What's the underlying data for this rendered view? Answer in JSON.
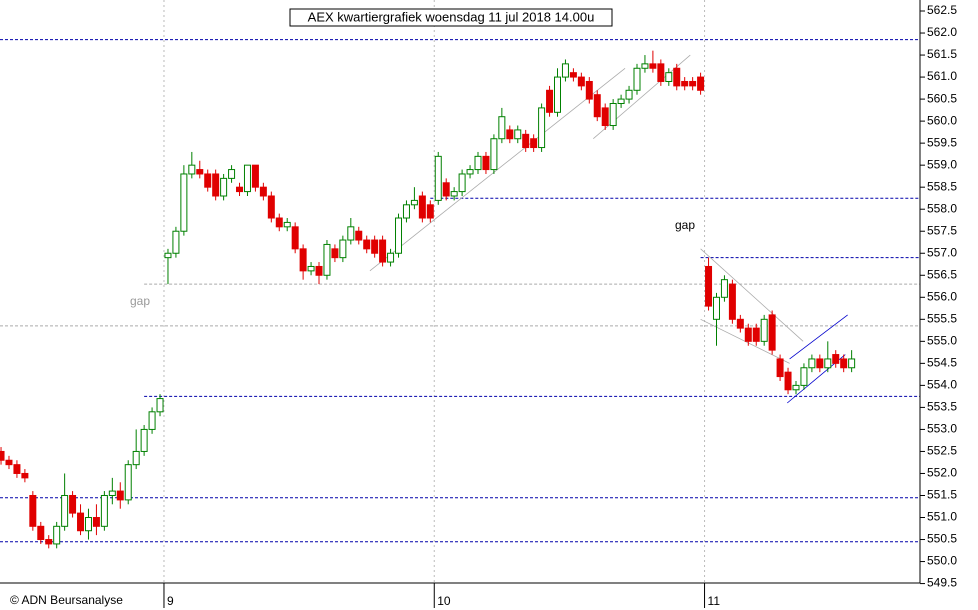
{
  "chart_data": {
    "type": "candlestick",
    "title": "AEX kwartiergrafiek woensdag 11 jul 2018 14.00u",
    "source": "© ADN Beursanalyse",
    "annotations": [
      "gap",
      "gap"
    ],
    "up_color": "#008000",
    "down_color": "#e00000",
    "x": [
      -21,
      -20,
      -19,
      -18,
      -17,
      -16,
      -15,
      -14,
      -13,
      -12,
      -11,
      -10,
      -9,
      -8,
      -7,
      -6,
      -5,
      -4,
      -3,
      -2,
      -1,
      0,
      1,
      2,
      3,
      4,
      5,
      6,
      7,
      8,
      9,
      10,
      11,
      12,
      13,
      14,
      15,
      16,
      17,
      18,
      19,
      20,
      21,
      22,
      23,
      24,
      25,
      26,
      27,
      28,
      29,
      30,
      31,
      32,
      33,
      34,
      35,
      36,
      37,
      38,
      39,
      40,
      41,
      42,
      43,
      44,
      45,
      46,
      47,
      48,
      49,
      50,
      51,
      52,
      53,
      54,
      55,
      56,
      57,
      58,
      59,
      60,
      61,
      62,
      63,
      64,
      65,
      66,
      67,
      68,
      69,
      70,
      71,
      72,
      73,
      74,
      75,
      76,
      77,
      78,
      79,
      80,
      81,
      82,
      83,
      84,
      85,
      86
    ],
    "open": [
      552.5,
      552.3,
      552.2,
      552.0,
      551.5,
      550.8,
      550.5,
      550.4,
      550.8,
      551.5,
      551.1,
      550.7,
      551.0,
      550.8,
      551.5,
      551.6,
      551.4,
      552.2,
      552.5,
      553.0,
      553.4,
      556.9,
      557.0,
      557.5,
      558.8,
      558.9,
      558.8,
      558.8,
      558.3,
      558.7,
      558.5,
      558.4,
      559.0,
      558.5,
      558.3,
      557.8,
      557.6,
      557.6,
      557.1,
      556.6,
      556.7,
      556.5,
      557.1,
      556.9,
      557.3,
      557.5,
      557.3,
      557.3,
      557.3,
      556.8,
      557.0,
      557.8,
      558.1,
      558.3,
      558.1,
      558.2,
      558.6,
      558.3,
      558.4,
      558.8,
      558.9,
      559.2,
      558.9,
      559.6,
      559.8,
      559.6,
      559.7,
      559.6,
      559.4,
      560.7,
      560.2,
      561.0,
      561.1,
      561.0,
      560.9,
      560.6,
      560.3,
      559.9,
      560.4,
      560.5,
      560.7,
      561.2,
      561.3,
      561.3,
      560.9,
      561.2,
      560.9,
      560.9,
      561.0,
      556.7,
      555.5,
      556.0,
      556.3,
      555.5,
      555.3,
      555.3,
      555.0,
      555.6,
      554.6,
      554.3,
      553.9,
      554.0,
      554.4,
      554.6,
      554.4,
      554.7,
      554.6,
      554.4
    ],
    "high": [
      552.6,
      552.4,
      552.3,
      552.1,
      551.6,
      550.9,
      550.6,
      550.9,
      552.0,
      551.6,
      551.3,
      551.2,
      551.3,
      551.6,
      551.9,
      551.8,
      552.3,
      553.0,
      553.1,
      553.5,
      553.8,
      557.1,
      557.6,
      559.0,
      559.3,
      559.1,
      558.9,
      558.9,
      558.8,
      559.0,
      558.6,
      559.0,
      559.0,
      558.6,
      558.4,
      557.9,
      557.8,
      557.7,
      557.2,
      556.8,
      556.8,
      557.3,
      557.2,
      557.4,
      557.8,
      557.6,
      557.4,
      557.4,
      557.4,
      557.1,
      557.9,
      558.2,
      558.5,
      558.4,
      558.2,
      559.3,
      558.7,
      558.5,
      558.9,
      559.0,
      559.3,
      559.3,
      559.7,
      560.3,
      559.9,
      559.9,
      559.8,
      559.7,
      560.4,
      560.8,
      561.2,
      561.4,
      561.2,
      561.1,
      561.0,
      560.7,
      560.4,
      560.5,
      560.6,
      560.8,
      561.3,
      561.5,
      561.6,
      561.4,
      561.2,
      561.3,
      561.0,
      561.0,
      561.1,
      556.9,
      556.1,
      556.5,
      556.4,
      555.6,
      555.4,
      555.4,
      555.6,
      555.7,
      554.7,
      554.4,
      554.1,
      554.5,
      554.7,
      554.7,
      555.0,
      554.8,
      554.7,
      554.8
    ],
    "low": [
      552.2,
      552.1,
      551.9,
      551.8,
      550.7,
      550.4,
      550.3,
      550.3,
      550.7,
      551.0,
      550.6,
      550.5,
      550.6,
      550.7,
      551.3,
      551.2,
      551.3,
      552.1,
      552.4,
      552.9,
      553.3,
      556.3,
      556.9,
      557.4,
      558.7,
      558.7,
      558.4,
      558.2,
      558.2,
      558.6,
      558.3,
      558.3,
      558.4,
      558.2,
      557.7,
      557.5,
      557.5,
      557.0,
      556.4,
      556.5,
      556.3,
      556.4,
      556.8,
      556.8,
      557.2,
      557.2,
      557.0,
      556.9,
      556.7,
      556.7,
      556.9,
      557.7,
      558.0,
      557.7,
      557.7,
      558.1,
      558.2,
      558.2,
      558.3,
      558.7,
      558.8,
      558.8,
      558.8,
      559.5,
      559.5,
      559.5,
      559.3,
      559.3,
      559.3,
      560.1,
      560.1,
      560.9,
      560.9,
      560.7,
      560.4,
      560.0,
      559.8,
      559.8,
      560.3,
      560.4,
      560.6,
      561.1,
      561.1,
      560.8,
      560.8,
      560.7,
      560.7,
      560.7,
      560.6,
      555.7,
      554.9,
      555.9,
      555.4,
      555.2,
      554.9,
      554.9,
      554.9,
      554.7,
      554.1,
      553.8,
      553.8,
      553.9,
      554.3,
      554.3,
      554.3,
      554.4,
      554.3,
      554.3
    ],
    "close": [
      552.3,
      552.2,
      552.0,
      551.9,
      550.8,
      550.5,
      550.4,
      550.8,
      551.5,
      551.1,
      550.7,
      551.0,
      550.8,
      551.5,
      551.6,
      551.4,
      552.2,
      552.5,
      553.0,
      553.4,
      553.7,
      557.0,
      557.5,
      558.8,
      559.0,
      558.8,
      558.5,
      558.3,
      558.7,
      558.9,
      558.4,
      559.0,
      558.5,
      558.3,
      557.8,
      557.6,
      557.7,
      557.1,
      556.6,
      556.7,
      556.5,
      557.2,
      556.9,
      557.3,
      557.6,
      557.3,
      557.1,
      557.0,
      556.8,
      557.0,
      557.8,
      558.1,
      558.2,
      557.8,
      557.8,
      559.2,
      558.3,
      558.4,
      558.8,
      558.9,
      559.2,
      558.9,
      559.6,
      560.1,
      559.6,
      559.8,
      559.4,
      559.4,
      560.3,
      560.2,
      561.0,
      561.3,
      561.0,
      560.8,
      560.5,
      560.1,
      559.9,
      560.4,
      560.5,
      560.7,
      561.2,
      561.3,
      561.2,
      560.9,
      561.1,
      560.8,
      560.8,
      560.8,
      560.7,
      555.8,
      556.0,
      556.4,
      555.5,
      555.3,
      555.0,
      555.0,
      555.5,
      554.8,
      554.2,
      553.9,
      554.0,
      554.4,
      554.6,
      554.4,
      554.6,
      554.5,
      554.4,
      554.6
    ],
    "xlim": [
      -21.13,
      94.6
    ],
    "xticks": [
      {
        "value": 0,
        "label": "9"
      },
      {
        "value": 34,
        "label": "10"
      },
      {
        "value": 68,
        "label": "11"
      }
    ],
    "ylim": [
      548.9,
      562.75
    ],
    "yticks": [
      {
        "value": 549.5,
        "label": "549.5"
      },
      {
        "value": 550,
        "label": "550.0"
      },
      {
        "value": 550.5,
        "label": "550.5"
      },
      {
        "value": 551,
        "label": "551.0"
      },
      {
        "value": 551.5,
        "label": "551.5"
      },
      {
        "value": 552,
        "label": "552.0"
      },
      {
        "value": 552.5,
        "label": "552.5"
      },
      {
        "value": 553,
        "label": "553.0"
      },
      {
        "value": 553.5,
        "label": "553.5"
      },
      {
        "value": 554,
        "label": "554.0"
      },
      {
        "value": 554.5,
        "label": "554.5"
      },
      {
        "value": 555,
        "label": "555.0"
      },
      {
        "value": 555.5,
        "label": "555.5"
      },
      {
        "value": 556,
        "label": "556.0"
      },
      {
        "value": 556.5,
        "label": "556.5"
      },
      {
        "value": 557,
        "label": "557.0"
      },
      {
        "value": 557.5,
        "label": "557.5"
      },
      {
        "value": 558,
        "label": "558.0"
      },
      {
        "value": 558.5,
        "label": "558.5"
      },
      {
        "value": 559,
        "label": "559.0"
      },
      {
        "value": 559.5,
        "label": "559.5"
      },
      {
        "value": 560,
        "label": "560.0"
      },
      {
        "value": 560.5,
        "label": "560.5"
      },
      {
        "value": 561,
        "label": "561.0"
      },
      {
        "value": 561.5,
        "label": "561.5"
      },
      {
        "value": 562,
        "label": "562.0"
      },
      {
        "value": 562.5,
        "label": "562.5"
      }
    ],
    "hlines": [
      {
        "value": 561.85,
        "from": -21.13,
        "color": "#0000aa"
      },
      {
        "value": 558.25,
        "from": 33,
        "color": "#0000aa"
      },
      {
        "value": 556.9,
        "from": 67,
        "color": "#0000aa"
      },
      {
        "value": 556.3,
        "from": -3,
        "color": "#aaaaaa"
      },
      {
        "value": 555.35,
        "from": -21.13,
        "color": "#aaaaaa"
      },
      {
        "value": 553.75,
        "from": -3,
        "color": "#0000aa"
      },
      {
        "value": 551.45,
        "from": -21.13,
        "color": "#0000aa"
      },
      {
        "value": 550.45,
        "from": -21.13,
        "color": "#0000aa"
      }
    ],
    "trendlines": [
      {
        "x": [
          25.4,
          57.5
        ],
        "y": [
          556.6,
          561.2
        ],
        "color": "#aaaaaa"
      },
      {
        "x": [
          53.5,
          65.7
        ],
        "y": [
          559.6,
          561.5
        ],
        "color": "#aaaaaa"
      },
      {
        "x": [
          67,
          79.9
        ],
        "y": [
          557.1,
          555.0
        ],
        "color": "#aaaaaa"
      },
      {
        "x": [
          67,
          78.2
        ],
        "y": [
          555.5,
          554.5
        ],
        "color": "#aaaaaa"
      },
      {
        "x": [
          78.2,
          85.5
        ],
        "y": [
          554.6,
          555.6
        ],
        "color": "#0000cc"
      },
      {
        "x": [
          77.9,
          85.2
        ],
        "y": [
          553.6,
          554.7
        ],
        "color": "#0000cc"
      }
    ]
  }
}
